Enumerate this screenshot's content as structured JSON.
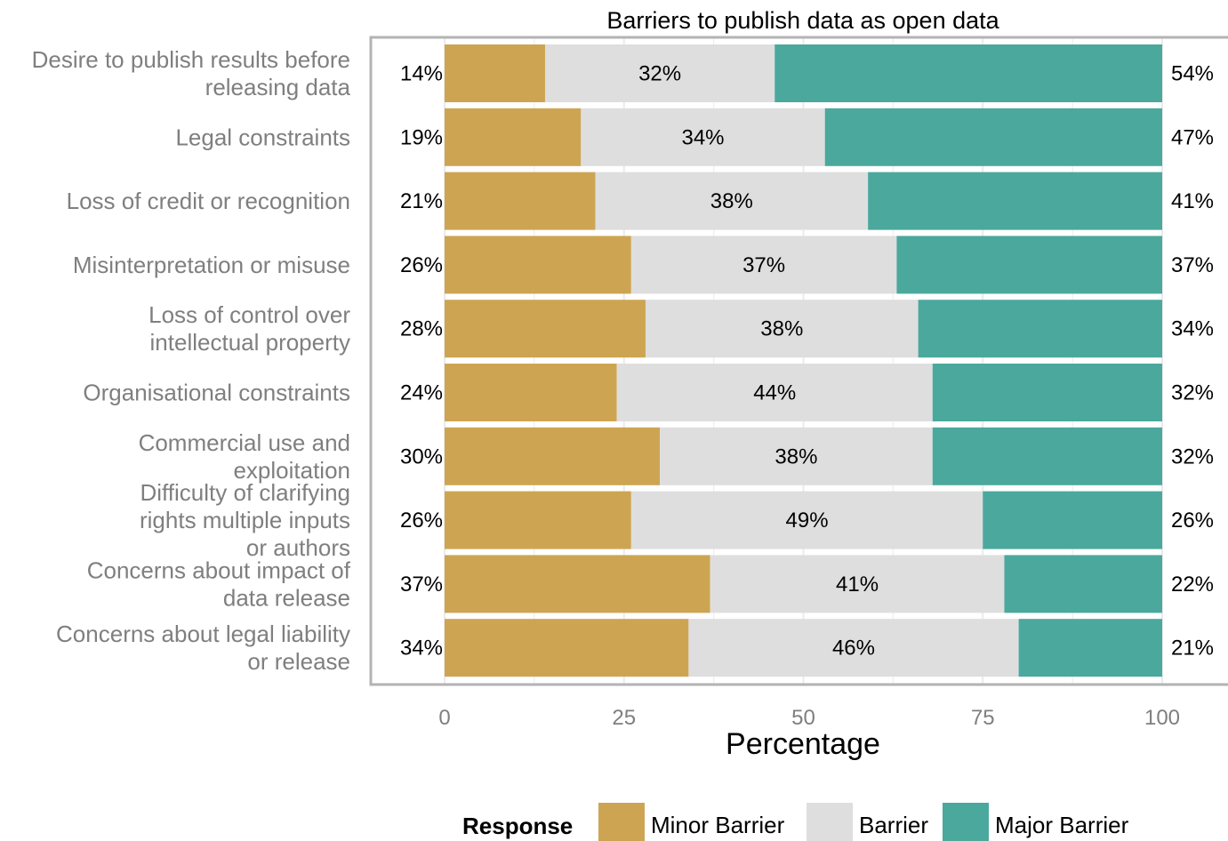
{
  "chart_data": {
    "type": "bar",
    "orientation": "horizontal",
    "stacked": true,
    "title": "Barriers to publish data as open data",
    "xlabel": "Percentage",
    "ylabel": "",
    "xlim": [
      0,
      100
    ],
    "x_ticks": [
      "0",
      "25",
      "50",
      "75",
      "100"
    ],
    "grid": true,
    "legend_position": "bottom",
    "legend_title": "Response",
    "categories": [
      "Desire to publish results before releasing data",
      "Legal constraints",
      "Loss of credit or recognition",
      "Misinterpretation or misuse",
      "Loss of control over intellectual property",
      "Organisational constraints",
      "Commercial use and exploitation",
      "Difficulty of clarifying rights multiple inputs or authors",
      "Concerns about impact of data release",
      "Concerns about legal liability or release"
    ],
    "series": [
      {
        "name": "Minor Barrier",
        "color": "#CDA552",
        "values": [
          14,
          19,
          21,
          26,
          28,
          24,
          30,
          26,
          37,
          34
        ],
        "labels": [
          "14%",
          "19%",
          "21%",
          "26%",
          "28%",
          "24%",
          "30%",
          "26%",
          "37%",
          "34%"
        ]
      },
      {
        "name": "Barrier",
        "color": "#DEDEDE",
        "values": [
          32,
          34,
          38,
          37,
          38,
          44,
          38,
          49,
          41,
          46
        ],
        "labels": [
          "32%",
          "34%",
          "38%",
          "37%",
          "38%",
          "44%",
          "38%",
          "49%",
          "41%",
          "46%"
        ]
      },
      {
        "name": "Major Barrier",
        "color": "#4BA89D",
        "values": [
          54,
          47,
          41,
          37,
          34,
          32,
          32,
          26,
          22,
          21
        ],
        "labels": [
          "54%",
          "47%",
          "41%",
          "37%",
          "34%",
          "32%",
          "32%",
          "26%",
          "22%",
          "21%"
        ]
      }
    ]
  }
}
